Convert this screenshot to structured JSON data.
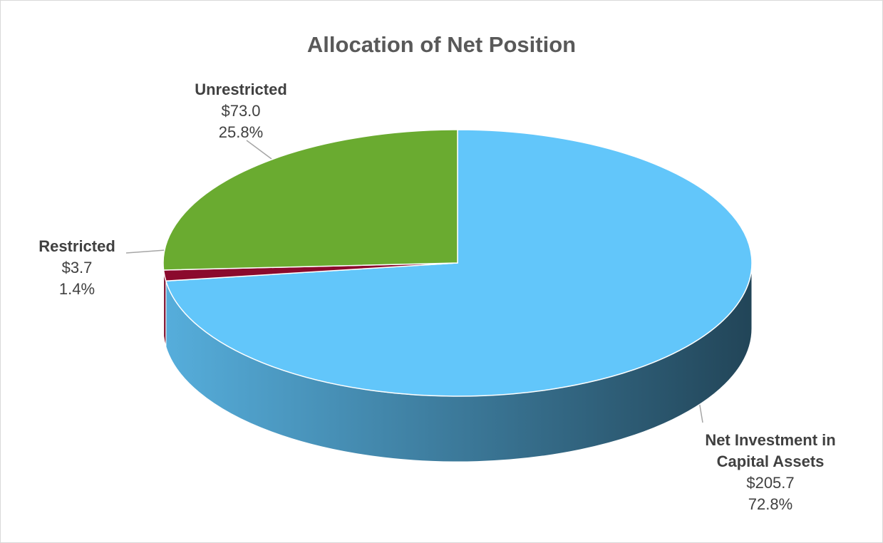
{
  "chart_data": {
    "type": "pie3d",
    "title": "Allocation of Net Position",
    "categories": [
      "Net Investment in Capital Assets",
      "Restricted",
      "Unrestricted"
    ],
    "values": [
      205.7,
      3.7,
      73.0
    ],
    "value_labels": [
      "$205.7",
      "$3.7",
      "$73.0"
    ],
    "percents": [
      72.8,
      1.4,
      25.8
    ],
    "percent_labels": [
      "72.8%",
      "1.4%",
      "25.8%"
    ],
    "colors": [
      "#62c6fa",
      "#8b0a2d",
      "#6aab30"
    ]
  }
}
